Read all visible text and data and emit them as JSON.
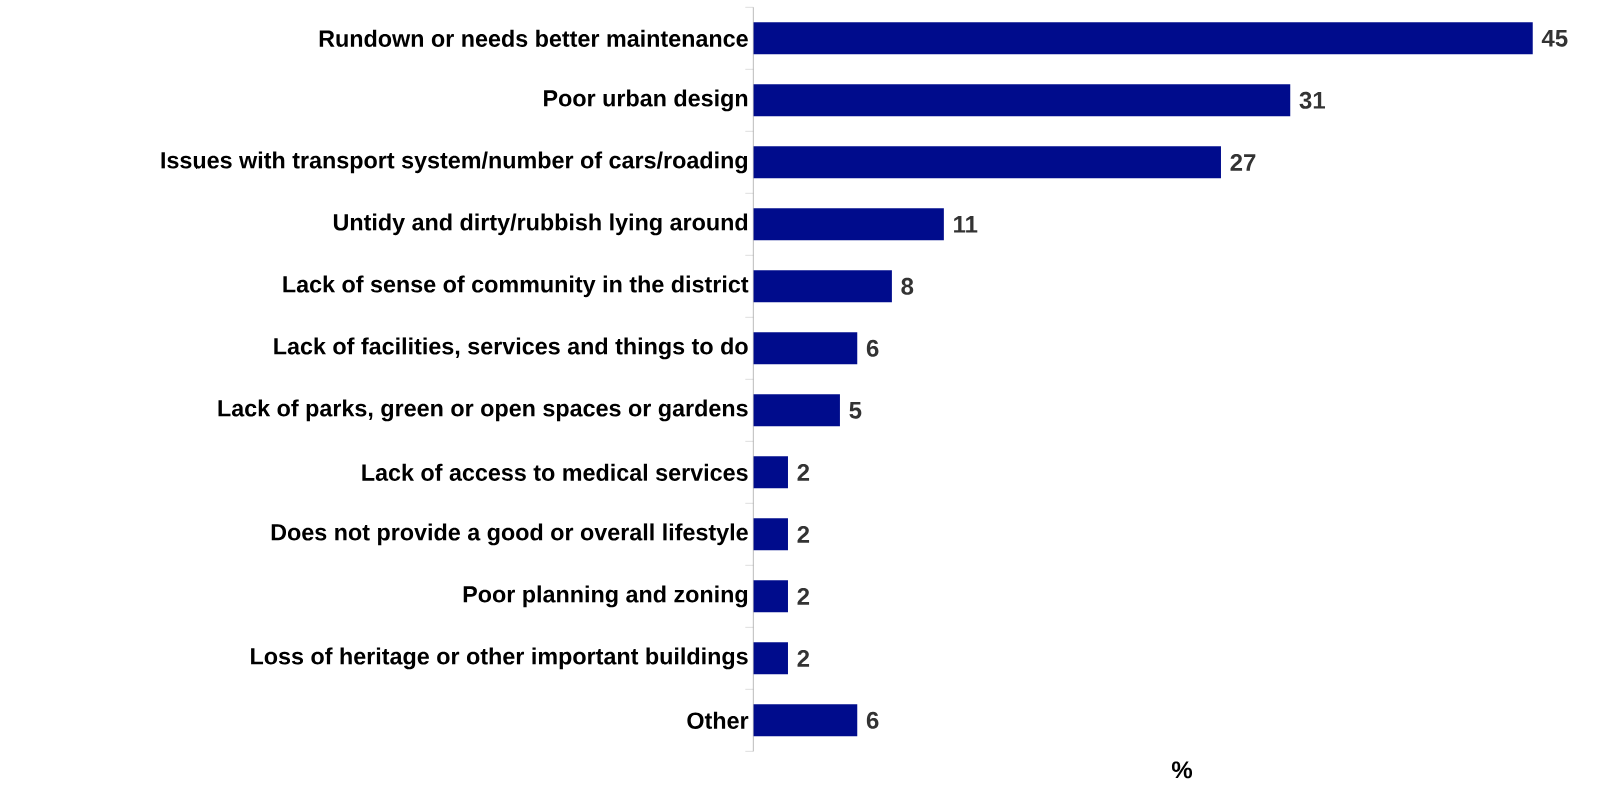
{
  "chart_data": {
    "type": "bar",
    "orientation": "horizontal",
    "xlabel": "%",
    "categories": [
      "Rundown or needs better maintenance",
      "Poor urban design",
      "Issues with transport system/number of cars/roading",
      "Untidy and dirty/rubbish lying around",
      "Lack of sense of community in the district",
      "Lack of facilities, services and things to do",
      "Lack of parks, green or open spaces or gardens",
      "Lack of access to medical services",
      "Does not provide a good or overall lifestyle",
      "Poor planning and zoning",
      "Loss of heritage or other important buildings",
      "Other"
    ],
    "values": [
      45,
      31,
      27,
      11,
      8,
      6,
      5,
      2,
      2,
      2,
      2,
      6
    ],
    "color": "#000c8c",
    "data_labels": true
  }
}
